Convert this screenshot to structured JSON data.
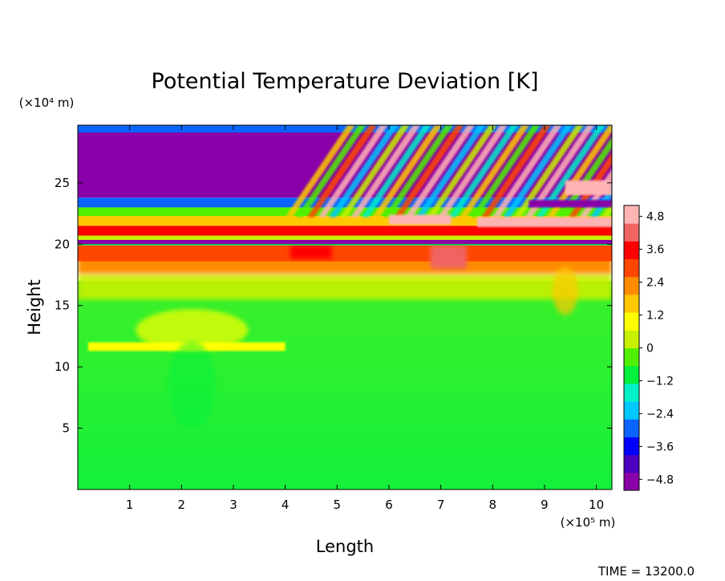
{
  "chart_data": {
    "type": "heatmap",
    "title": "Potential Temperature Deviation [K]",
    "xlabel": "Length",
    "ylabel": "Height",
    "x_unit": "(×10⁵ m)",
    "y_unit": "(×10⁴ m)",
    "xlim": [
      0,
      10.3
    ],
    "ylim": [
      0,
      29.7
    ],
    "x_ticks": [
      "1",
      "2",
      "3",
      "4",
      "5",
      "6",
      "7",
      "8",
      "9",
      "10"
    ],
    "x_tick_values": [
      1,
      2,
      3,
      4,
      5,
      6,
      7,
      8,
      9,
      10
    ],
    "y_ticks": [
      "5",
      "10",
      "15",
      "20",
      "25"
    ],
    "y_tick_values": [
      5,
      10,
      15,
      20,
      25
    ],
    "colorbar": {
      "ticks": [
        "4.8",
        "3.6",
        "2.4",
        "1.2",
        "0",
        "−1.2",
        "−2.4",
        "−3.6",
        "−4.8"
      ],
      "tick_values": [
        4.8,
        3.6,
        2.4,
        1.2,
        0,
        -1.2,
        -2.4,
        -3.6,
        -4.8
      ],
      "range": [
        -5.2,
        5.2
      ],
      "colors": [
        "#8a00a8",
        "#4b00c0",
        "#0000ff",
        "#0a64ff",
        "#00c8ff",
        "#00f0c8",
        "#00f03c",
        "#50f000",
        "#c8f000",
        "#ffff00",
        "#ffc800",
        "#ff8c00",
        "#ff4600",
        "#ff0000",
        "#f06464",
        "#ffb4b4"
      ]
    },
    "regions": [
      {
        "name": "lower-troposphere",
        "x": [
          0,
          10.3
        ],
        "y": [
          0,
          16
        ],
        "value": 0
      },
      {
        "name": "warm-band-below-tropopause",
        "x": [
          0,
          10.3
        ],
        "y": [
          17,
          20
        ],
        "value": 3.0
      },
      {
        "name": "tropopause-cold-line",
        "x": [
          0,
          10.3
        ],
        "y": [
          20.1,
          20.4
        ],
        "value": -4.8
      },
      {
        "name": "warm-layer-above-tropopause",
        "x": [
          0,
          10.3
        ],
        "y": [
          20.6,
          21.6
        ],
        "value": 4.0
      },
      {
        "name": "upper-cold-block",
        "x": [
          0.05,
          4.2
        ],
        "y": [
          24,
          29.5
        ],
        "value": -5.0
      },
      {
        "name": "wave-trains",
        "x": [
          4,
          10.3
        ],
        "y": [
          21,
          29.7
        ],
        "value": "oscillating -4.8 to 4.8"
      },
      {
        "name": "weak-warm-blob-1",
        "x": [
          1,
          4
        ],
        "y": [
          11,
          14
        ],
        "value": 1.2
      },
      {
        "name": "weak-cold-blob",
        "x": [
          1.5,
          3
        ],
        "y": [
          6,
          11
        ],
        "value": -1.2
      }
    ],
    "annotation": "TIME = 13200.0"
  }
}
